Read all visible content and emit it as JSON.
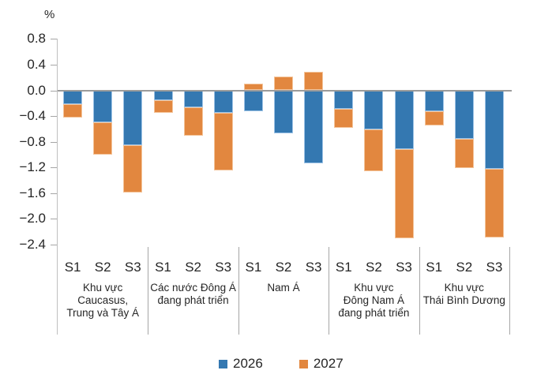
{
  "chart_data": {
    "type": "bar",
    "stacked": true,
    "title": "",
    "unit_label": "%",
    "ylabel": "%",
    "xlabel": "",
    "grid": false,
    "legend_position": "bottom",
    "ylim": [
      -2.6,
      0.9
    ],
    "yticks": [
      0.8,
      0.4,
      0.0,
      -0.4,
      -0.8,
      -1.2,
      -1.6,
      -2.0,
      -2.4
    ],
    "ytick_labels": [
      "0.8",
      "0.4",
      "0.0",
      "−0.4",
      "−0.8",
      "−1.2",
      "−1.6",
      "−2.0",
      "−2.4"
    ],
    "scenarios": [
      "S1",
      "S2",
      "S3"
    ],
    "groups": [
      {
        "name": "Khu vực Caucasus, Trung và Tây Á",
        "label_lines": [
          "Khu vực",
          "Caucasus,",
          "Trung và Tây Á"
        ]
      },
      {
        "name": "Các nước Đông Á đang phát triển",
        "label_lines": [
          "Các nước Đông Á",
          "đang phát triển"
        ]
      },
      {
        "name": "Nam Á",
        "label_lines": [
          "Nam Á"
        ]
      },
      {
        "name": "Khu vực Đông Nam Á đang phát triển",
        "label_lines": [
          "Khu vực",
          "Đông Nam Á",
          "đang phát triển"
        ]
      },
      {
        "name": "Khu vực Thái Bình Dương",
        "label_lines": [
          "Khu vực",
          "Thái Bình Dương"
        ]
      }
    ],
    "series": [
      {
        "name": "2026",
        "color": "#3478b1",
        "border_color": "#9dc3e6",
        "values": [
          [
            -0.22,
            -0.5,
            -0.85
          ],
          [
            -0.15,
            -0.26,
            -0.35
          ],
          [
            -0.32,
            -0.67,
            -1.13
          ],
          [
            -0.29,
            -0.61,
            -0.91
          ],
          [
            -0.32,
            -0.75,
            -1.22
          ]
        ]
      },
      {
        "name": "2027",
        "color": "#e2873f",
        "border_color": "#f4c49a",
        "values": [
          [
            -0.21,
            -0.5,
            -0.74
          ],
          [
            -0.2,
            -0.45,
            -0.9
          ],
          [
            0.1,
            0.22,
            0.29
          ],
          [
            -0.3,
            -0.65,
            -1.39
          ],
          [
            -0.23,
            -0.46,
            -1.07
          ]
        ]
      }
    ]
  },
  "colors": {
    "axis": "#bfbfbf",
    "tick": "#a6a6a6",
    "separator": "#a6a6a6",
    "zero_line": "#9b9b9b",
    "text": "#262626",
    "background": "#ffffff"
  }
}
